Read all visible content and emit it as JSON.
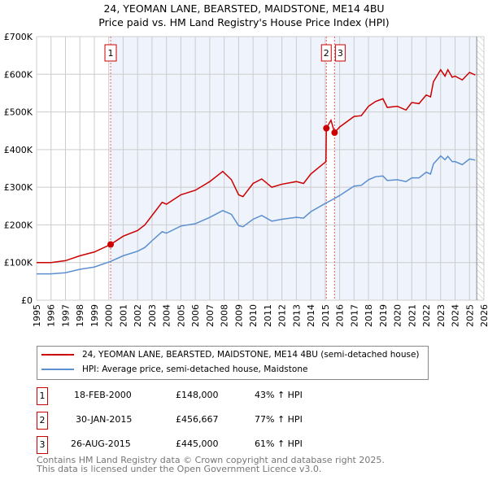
{
  "title": "24, YEOMAN LANE, BEARSTED, MAIDSTONE, ME14 4BU",
  "subtitle": "Price paid vs. HM Land Registry's House Price Index (HPI)",
  "chart_data": {
    "type": "line",
    "title": "24, YEOMAN LANE, BEARSTED, MAIDSTONE, ME14 4BU - Price paid vs. HM Land Registry's House Price Index (HPI)",
    "xlim": [
      1995,
      2026
    ],
    "ylim": [
      0,
      700000
    ],
    "xticks": [
      "1995",
      "1996",
      "1997",
      "1998",
      "1999",
      "2000",
      "2001",
      "2002",
      "2003",
      "2004",
      "2005",
      "2006",
      "2007",
      "2008",
      "2009",
      "2010",
      "2011",
      "2012",
      "2013",
      "2014",
      "2015",
      "2016",
      "2017",
      "2018",
      "2019",
      "2020",
      "2021",
      "2022",
      "2023",
      "2024",
      "2025",
      "2026"
    ],
    "yticks": [
      {
        "v": 0,
        "label": "£0"
      },
      {
        "v": 100000,
        "label": "£100K"
      },
      {
        "v": 200000,
        "label": "£200K"
      },
      {
        "v": 300000,
        "label": "£300K"
      },
      {
        "v": 400000,
        "label": "£400K"
      },
      {
        "v": 500000,
        "label": "£500K"
      },
      {
        "v": 600000,
        "label": "£600K"
      },
      {
        "v": 700000,
        "label": "£700K"
      }
    ],
    "grid": true,
    "series": [
      {
        "name": "24, YEOMAN LANE, BEARSTED, MAIDSTONE, ME14 4BU (semi-detached house)",
        "color": "#cc0000",
        "points": [
          [
            1995,
            100
          ],
          [
            1996,
            100
          ],
          [
            1997,
            105
          ],
          [
            1998,
            118
          ],
          [
            1999,
            128
          ],
          [
            2000.13,
            148
          ],
          [
            2001,
            170
          ],
          [
            2002,
            185
          ],
          [
            2002.5,
            200
          ],
          [
            2003,
            225
          ],
          [
            2003.7,
            260
          ],
          [
            2004,
            255
          ],
          [
            2005,
            280
          ],
          [
            2006,
            292
          ],
          [
            2007,
            315
          ],
          [
            2007.9,
            342
          ],
          [
            2008.5,
            320
          ],
          [
            2009,
            280
          ],
          [
            2009.3,
            275
          ],
          [
            2010,
            310
          ],
          [
            2010.6,
            322
          ],
          [
            2011.3,
            300
          ],
          [
            2012,
            308
          ],
          [
            2013,
            315
          ],
          [
            2013.5,
            310
          ],
          [
            2014,
            335
          ],
          [
            2015.05,
            368
          ],
          [
            2015.08,
            456.667
          ],
          [
            2015.4,
            478
          ],
          [
            2015.65,
            445
          ],
          [
            2016,
            460
          ],
          [
            2017,
            488
          ],
          [
            2017.5,
            490
          ],
          [
            2018,
            515
          ],
          [
            2018.5,
            528
          ],
          [
            2019,
            535
          ],
          [
            2019.3,
            512
          ],
          [
            2020,
            515
          ],
          [
            2020.6,
            505
          ],
          [
            2021,
            525
          ],
          [
            2021.5,
            522
          ],
          [
            2022,
            545
          ],
          [
            2022.3,
            540
          ],
          [
            2022.5,
            580
          ],
          [
            2023,
            612
          ],
          [
            2023.3,
            595
          ],
          [
            2023.5,
            612
          ],
          [
            2023.8,
            592
          ],
          [
            2024,
            595
          ],
          [
            2024.5,
            585
          ],
          [
            2025,
            605
          ],
          [
            2025.4,
            598
          ]
        ]
      },
      {
        "name": "HPI: Average price, semi-detached house, Maidstone",
        "color": "#5b8fd0",
        "points": [
          [
            1995,
            70
          ],
          [
            1996,
            70
          ],
          [
            1997,
            73
          ],
          [
            1998,
            82
          ],
          [
            1999,
            88
          ],
          [
            2000.13,
            103
          ],
          [
            2001,
            118
          ],
          [
            2002,
            130
          ],
          [
            2002.5,
            140
          ],
          [
            2003,
            158
          ],
          [
            2003.7,
            182
          ],
          [
            2004,
            178
          ],
          [
            2005,
            197
          ],
          [
            2006,
            203
          ],
          [
            2007,
            220
          ],
          [
            2007.9,
            238
          ],
          [
            2008.5,
            228
          ],
          [
            2009,
            198
          ],
          [
            2009.3,
            195
          ],
          [
            2010,
            215
          ],
          [
            2010.6,
            225
          ],
          [
            2011.3,
            210
          ],
          [
            2012,
            215
          ],
          [
            2013,
            220
          ],
          [
            2013.5,
            218
          ],
          [
            2014,
            235
          ],
          [
            2015.05,
            258
          ],
          [
            2015.4,
            265
          ],
          [
            2016,
            278
          ],
          [
            2017,
            303
          ],
          [
            2017.5,
            305
          ],
          [
            2018,
            320
          ],
          [
            2018.5,
            328
          ],
          [
            2019,
            330
          ],
          [
            2019.3,
            318
          ],
          [
            2020,
            320
          ],
          [
            2020.6,
            315
          ],
          [
            2021,
            325
          ],
          [
            2021.5,
            325
          ],
          [
            2022,
            340
          ],
          [
            2022.3,
            335
          ],
          [
            2022.5,
            362
          ],
          [
            2023,
            383
          ],
          [
            2023.3,
            373
          ],
          [
            2023.5,
            382
          ],
          [
            2023.8,
            368
          ],
          [
            2024,
            368
          ],
          [
            2024.5,
            360
          ],
          [
            2025,
            375
          ],
          [
            2025.4,
            372
          ]
        ]
      }
    ],
    "sales": [
      {
        "n": "1",
        "x": 2000.13,
        "y": 148000
      },
      {
        "n": "2",
        "x": 2015.08,
        "y": 456667
      },
      {
        "n": "3",
        "x": 2015.65,
        "y": 445000
      }
    ],
    "forecast_start": 2025.5
  },
  "legend": {
    "property": "24, YEOMAN LANE, BEARSTED, MAIDSTONE, ME14 4BU (semi-detached house)",
    "hpi": "HPI: Average price, semi-detached house, Maidstone"
  },
  "transactions": [
    {
      "n": "1",
      "date": "18-FEB-2000",
      "price": "£148,000",
      "hpi": "43% ↑ HPI"
    },
    {
      "n": "2",
      "date": "30-JAN-2015",
      "price": "£456,667",
      "hpi": "77% ↑ HPI"
    },
    {
      "n": "3",
      "date": "26-AUG-2015",
      "price": "£445,000",
      "hpi": "61% ↑ HPI"
    }
  ],
  "footer": {
    "line1": "Contains HM Land Registry data © Crown copyright and database right 2025.",
    "line2": "This data is licensed under the Open Government Licence v3.0."
  }
}
